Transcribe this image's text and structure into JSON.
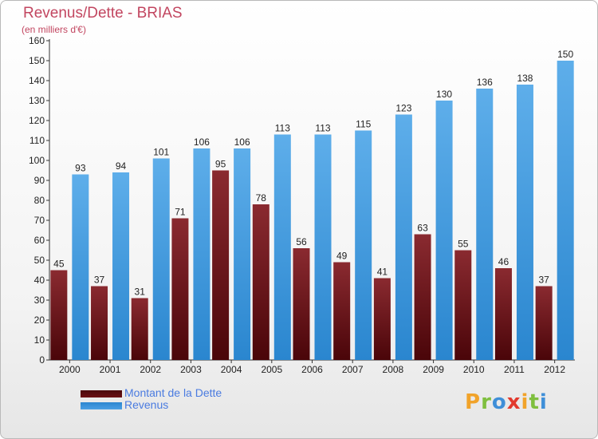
{
  "header": {
    "title": "Revenus/Dette - BRIAS",
    "subtitle": "(en milliers d'€)"
  },
  "chart_data": {
    "type": "bar",
    "title": "Revenus/Dette - BRIAS",
    "ylabel": "(en milliers d'€)",
    "categories": [
      "2000",
      "2001",
      "2002",
      "2003",
      "2004",
      "2005",
      "2006",
      "2007",
      "2008",
      "2009",
      "2010",
      "2011",
      "2012"
    ],
    "series": [
      {
        "name": "Montant de la Dette",
        "color": "#6b1014",
        "values": [
          45,
          37,
          31,
          71,
          95,
          78,
          56,
          49,
          41,
          63,
          55,
          46,
          37
        ]
      },
      {
        "name": "Revenus",
        "color": "#4b9fe3",
        "values": [
          93,
          94,
          101,
          106,
          106,
          113,
          113,
          115,
          123,
          130,
          136,
          138,
          150
        ]
      }
    ],
    "ylim": [
      0,
      160
    ],
    "yticks": [
      0,
      10,
      20,
      30,
      40,
      50,
      60,
      70,
      80,
      90,
      100,
      110,
      120,
      130,
      140,
      150,
      160
    ],
    "grid": false,
    "legend_position": "bottom-left"
  },
  "legend": {
    "items": [
      {
        "label": "Montant de la Dette",
        "color": "#6b1014"
      },
      {
        "label": "Revenus",
        "color": "#4b9fe3"
      }
    ]
  },
  "logo": {
    "letters": [
      "P",
      "r",
      "o",
      "x",
      "i",
      "t",
      "i"
    ],
    "colors": [
      "#f1a32a",
      "#7fbf3f",
      "#3f8fd8",
      "#e23a2e",
      "#f1a32a",
      "#7fbf3f",
      "#3f8fd8"
    ]
  }
}
